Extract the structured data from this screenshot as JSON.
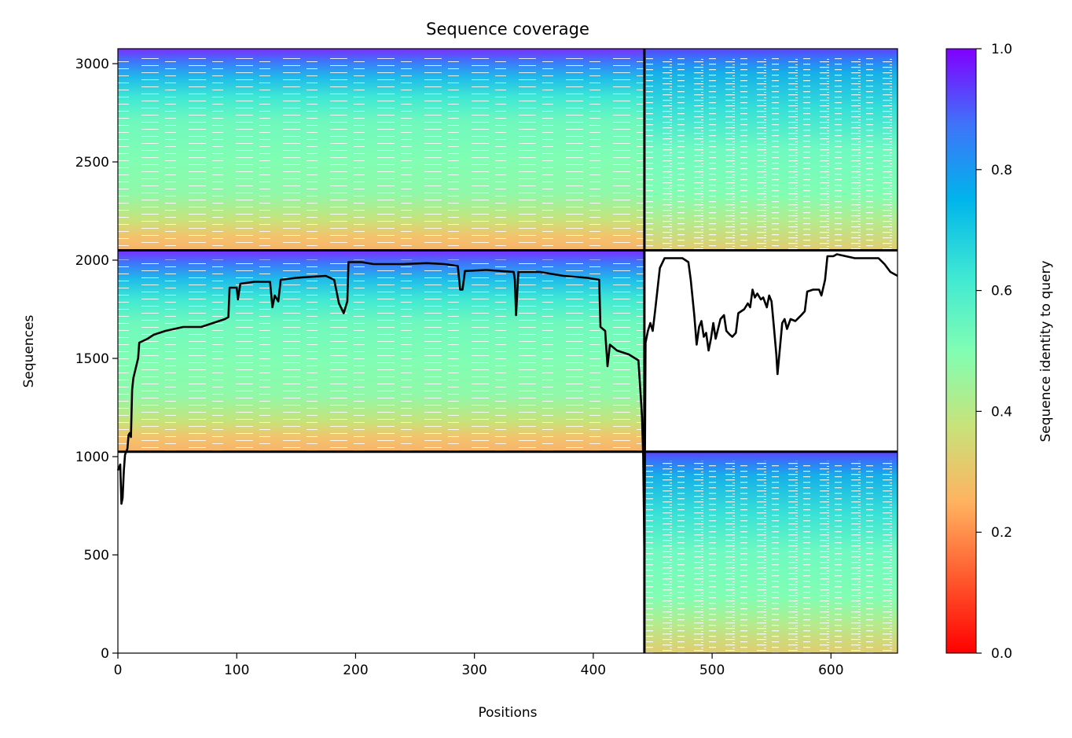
{
  "chart_data": {
    "type": "heatmap",
    "title": "Sequence coverage",
    "xlabel": "Positions",
    "ylabel": "Sequences",
    "xlim": [
      0,
      656
    ],
    "ylim": [
      0,
      3076
    ],
    "xticks": [
      0,
      100,
      200,
      300,
      400,
      500,
      600
    ],
    "yticks": [
      0,
      500,
      1000,
      1500,
      2000,
      2500,
      3000
    ],
    "colorbar": {
      "label": "Sequence identity to query",
      "colormap": "rainbow_r",
      "range": [
        0,
        1
      ],
      "ticks": [
        "0.0",
        "0.2",
        "0.4",
        "0.6",
        "0.8",
        "1.0"
      ]
    },
    "blocks": [
      {
        "x": [
          0,
          443
        ],
        "y": [
          2050,
          3076
        ],
        "identity_top": 1.0,
        "identity_bottom": 0.27,
        "gap_density": "medium"
      },
      {
        "x": [
          443,
          656
        ],
        "y": [
          2050,
          3076
        ],
        "identity_top": 1.0,
        "identity_bottom": 0.27,
        "gap_density": "high"
      },
      {
        "x": [
          0,
          443
        ],
        "y": [
          1025,
          2050
        ],
        "identity_top": 1.0,
        "identity_bottom": 0.27,
        "gap_density": "medium"
      },
      {
        "x": [
          443,
          656
        ],
        "y": [
          0,
          1025
        ],
        "identity_top": 1.0,
        "identity_bottom": 0.33,
        "gap_density": "high"
      }
    ],
    "block_boundaries": {
      "x": 443,
      "y": [
        1025,
        2050
      ]
    },
    "series": [
      {
        "color": "#000000",
        "points": [
          [
            0,
            930
          ],
          [
            2,
            960
          ],
          [
            3,
            760
          ],
          [
            4,
            790
          ],
          [
            5,
            930
          ],
          [
            6,
            1010
          ],
          [
            8,
            1040
          ],
          [
            9,
            1110
          ],
          [
            10,
            1120
          ],
          [
            11,
            1100
          ],
          [
            12,
            1340
          ],
          [
            13,
            1400
          ],
          [
            15,
            1450
          ],
          [
            17,
            1500
          ],
          [
            18,
            1580
          ],
          [
            25,
            1600
          ],
          [
            30,
            1620
          ],
          [
            40,
            1640
          ],
          [
            55,
            1660
          ],
          [
            70,
            1660
          ],
          [
            80,
            1680
          ],
          [
            90,
            1700
          ],
          [
            93,
            1710
          ],
          [
            94,
            1860
          ],
          [
            100,
            1860
          ],
          [
            101,
            1800
          ],
          [
            103,
            1880
          ],
          [
            115,
            1890
          ],
          [
            128,
            1890
          ],
          [
            130,
            1760
          ],
          [
            132,
            1820
          ],
          [
            135,
            1790
          ],
          [
            137,
            1900
          ],
          [
            150,
            1910
          ],
          [
            175,
            1920
          ],
          [
            182,
            1900
          ],
          [
            186,
            1780
          ],
          [
            190,
            1730
          ],
          [
            193,
            1790
          ],
          [
            194,
            1990
          ],
          [
            205,
            1990
          ],
          [
            215,
            1980
          ],
          [
            240,
            1980
          ],
          [
            260,
            1985
          ],
          [
            275,
            1980
          ],
          [
            286,
            1970
          ],
          [
            288,
            1850
          ],
          [
            290,
            1850
          ],
          [
            292,
            1945
          ],
          [
            310,
            1950
          ],
          [
            333,
            1940
          ],
          [
            334,
            1900
          ],
          [
            335,
            1720
          ],
          [
            337,
            1940
          ],
          [
            355,
            1940
          ],
          [
            375,
            1920
          ],
          [
            395,
            1910
          ],
          [
            405,
            1900
          ],
          [
            406,
            1660
          ],
          [
            410,
            1640
          ],
          [
            412,
            1460
          ],
          [
            414,
            1570
          ],
          [
            420,
            1540
          ],
          [
            430,
            1520
          ],
          [
            438,
            1490
          ],
          [
            440,
            1300
          ],
          [
            441,
            1200
          ],
          [
            442,
            1000
          ],
          [
            443,
            500
          ],
          [
            444,
            1580
          ],
          [
            446,
            1640
          ],
          [
            448,
            1680
          ],
          [
            450,
            1640
          ],
          [
            452,
            1740
          ],
          [
            456,
            1960
          ],
          [
            460,
            2010
          ],
          [
            475,
            2010
          ],
          [
            480,
            1990
          ],
          [
            482,
            1900
          ],
          [
            485,
            1720
          ],
          [
            487,
            1570
          ],
          [
            489,
            1660
          ],
          [
            491,
            1690
          ],
          [
            493,
            1610
          ],
          [
            495,
            1630
          ],
          [
            497,
            1540
          ],
          [
            499,
            1600
          ],
          [
            501,
            1680
          ],
          [
            503,
            1600
          ],
          [
            507,
            1700
          ],
          [
            510,
            1720
          ],
          [
            512,
            1640
          ],
          [
            515,
            1620
          ],
          [
            517,
            1610
          ],
          [
            520,
            1630
          ],
          [
            522,
            1730
          ],
          [
            527,
            1750
          ],
          [
            530,
            1780
          ],
          [
            532,
            1760
          ],
          [
            534,
            1850
          ],
          [
            536,
            1810
          ],
          [
            538,
            1830
          ],
          [
            541,
            1800
          ],
          [
            543,
            1810
          ],
          [
            546,
            1760
          ],
          [
            548,
            1820
          ],
          [
            550,
            1790
          ],
          [
            552,
            1660
          ],
          [
            554,
            1520
          ],
          [
            555,
            1420
          ],
          [
            557,
            1550
          ],
          [
            559,
            1680
          ],
          [
            561,
            1700
          ],
          [
            563,
            1650
          ],
          [
            566,
            1700
          ],
          [
            570,
            1690
          ],
          [
            575,
            1720
          ],
          [
            578,
            1740
          ],
          [
            580,
            1840
          ],
          [
            585,
            1850
          ],
          [
            590,
            1850
          ],
          [
            592,
            1820
          ],
          [
            595,
            1900
          ],
          [
            597,
            2020
          ],
          [
            602,
            2020
          ],
          [
            605,
            2030
          ],
          [
            620,
            2010
          ],
          [
            640,
            2010
          ],
          [
            645,
            1980
          ],
          [
            650,
            1940
          ],
          [
            656,
            1920
          ]
        ]
      }
    ]
  }
}
